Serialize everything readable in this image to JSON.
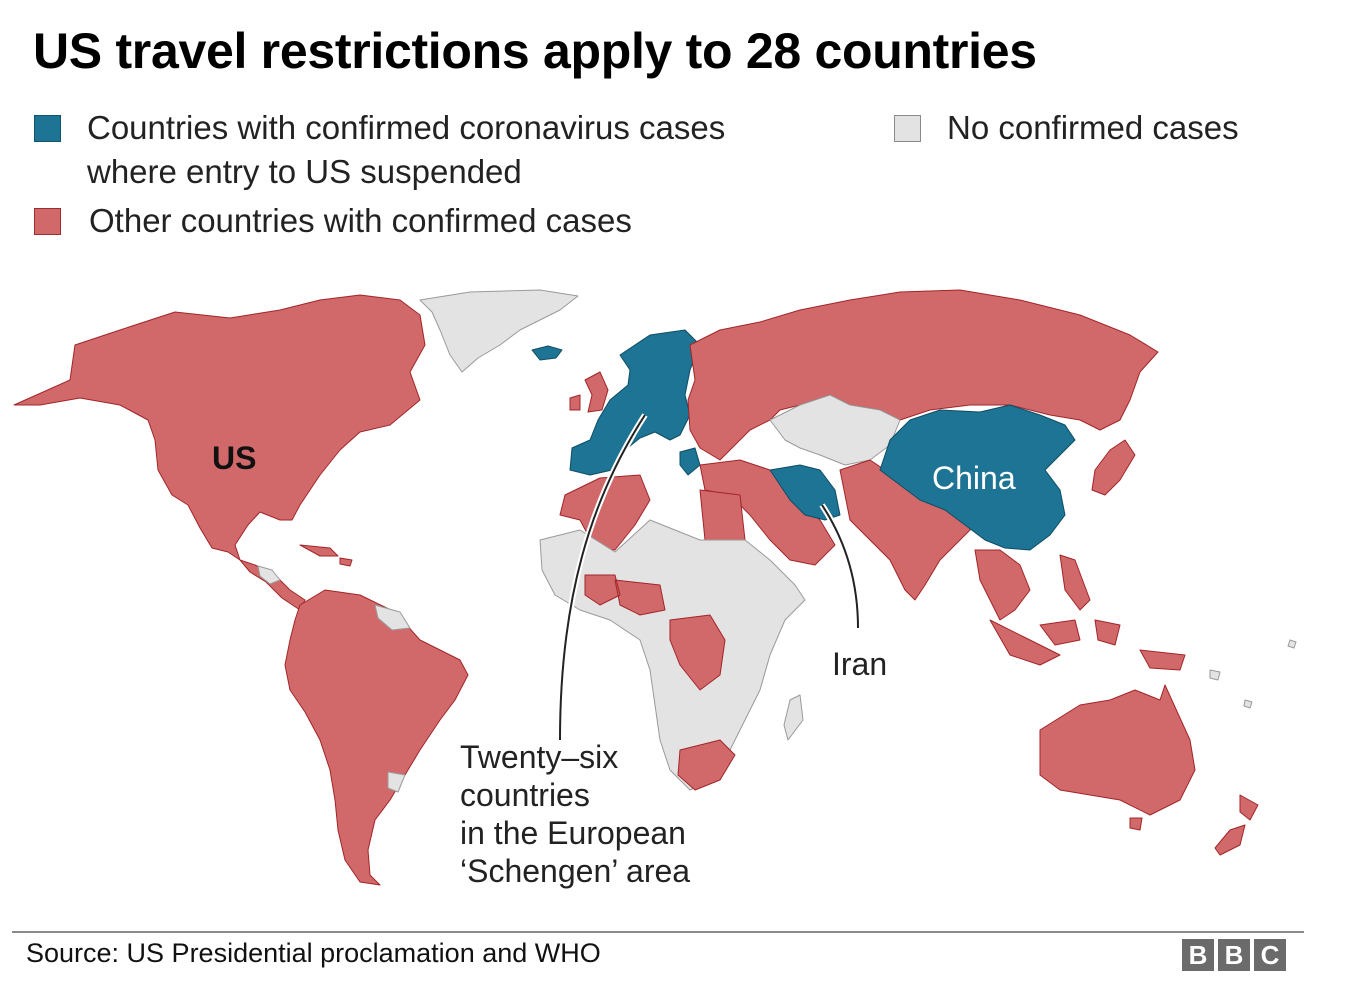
{
  "title": "US travel restrictions apply to 28 countries",
  "legend": {
    "suspended": {
      "line1": "Countries with confirmed coronavirus cases",
      "line2": "where entry to US suspended",
      "color": "#1d7494"
    },
    "other": {
      "label": "Other countries with confirmed cases",
      "color": "#d1696b"
    },
    "none": {
      "label": "No confirmed cases",
      "color": "#e3e3e3"
    }
  },
  "labels": {
    "us": "US",
    "china": "China",
    "iran": "Iran",
    "schengen": {
      "line1": "Twenty–six",
      "line2": "countries",
      "line3": "in the European",
      "line4": "‘Schengen’ area"
    }
  },
  "source": "Source: US Presidential proclamation and WHO",
  "logo": {
    "letters": [
      "B",
      "B",
      "C"
    ]
  }
}
